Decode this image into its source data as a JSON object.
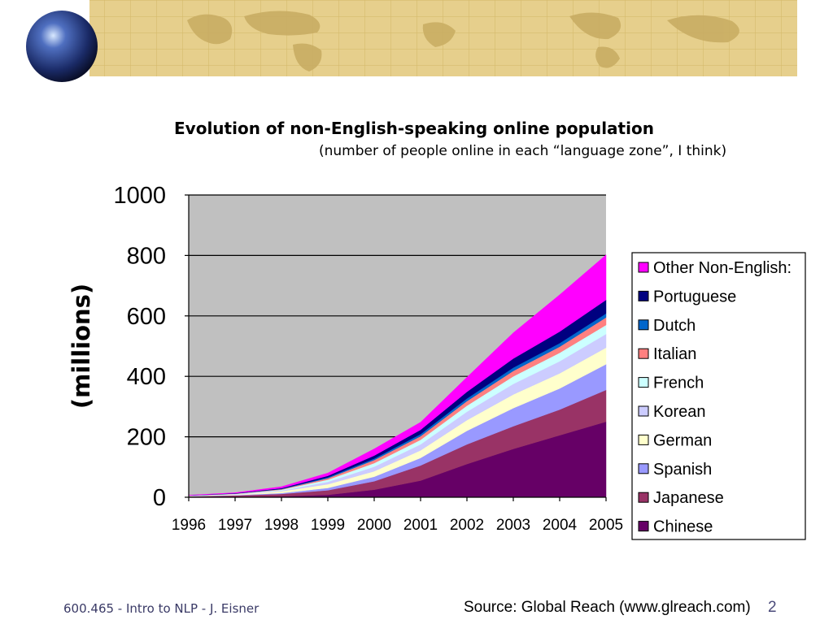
{
  "slide": {
    "footer_left": "600.465 - Intro to NLP - J. Eisner",
    "source": "Source: Global Reach (www.glreach.com)",
    "page_number": "2"
  },
  "colors": {
    "banner_bg": "#e6cf8c",
    "banner_grid": "#d3b766",
    "plot_bg": "#c0c0c0"
  },
  "chart_data": {
    "type": "area",
    "stacked": true,
    "title": "Evolution of non-English-speaking online population",
    "subtitle": "(number of people online in each “language zone”, I think)",
    "ylabel": "(millions)",
    "xlabel": "",
    "ylim": [
      0,
      1000
    ],
    "yticks": [
      0,
      200,
      400,
      600,
      800,
      1000
    ],
    "categories": [
      "1996",
      "1997",
      "1998",
      "1999",
      "2000",
      "2001",
      "2002",
      "2003",
      "2004",
      "2005"
    ],
    "grid": "horizontal",
    "legend_position": "right",
    "series": [
      {
        "name": "Chinese",
        "color": "#660066",
        "values": [
          1,
          2,
          3,
          8,
          25,
          55,
          110,
          160,
          205,
          250
        ]
      },
      {
        "name": "Japanese",
        "color": "#993366",
        "values": [
          2,
          4,
          8,
          15,
          28,
          50,
          65,
          75,
          85,
          105
        ]
      },
      {
        "name": "Spanish",
        "color": "#9999ff",
        "values": [
          0.5,
          1,
          3,
          8,
          15,
          25,
          45,
          60,
          70,
          85
        ]
      },
      {
        "name": "German",
        "color": "#ffffcc",
        "values": [
          1,
          2,
          6,
          12,
          18,
          25,
          35,
          45,
          50,
          55
        ]
      },
      {
        "name": "Korean",
        "color": "#ccccff",
        "values": [
          0.3,
          1,
          2,
          8,
          15,
          20,
          28,
          35,
          40,
          45
        ]
      },
      {
        "name": "French",
        "color": "#ccffff",
        "values": [
          0.5,
          1,
          3,
          7,
          12,
          15,
          20,
          25,
          28,
          30
        ]
      },
      {
        "name": "Italian",
        "color": "#ff8080",
        "values": [
          0.3,
          1,
          2,
          5,
          10,
          12,
          15,
          18,
          20,
          25
        ]
      },
      {
        "name": "Dutch",
        "color": "#0066cc",
        "values": [
          0.3,
          0.5,
          1,
          3,
          5,
          7,
          9,
          11,
          12,
          13
        ]
      },
      {
        "name": "Portuguese",
        "color": "#000080",
        "values": [
          0.3,
          1,
          2,
          5,
          10,
          14,
          22,
          30,
          38,
          45
        ]
      },
      {
        "name": "Other Non-English:",
        "color": "#ff00ff",
        "values": [
          0.5,
          1.5,
          5,
          9,
          22,
          25,
          48,
          85,
          122,
          149
        ]
      }
    ],
    "legend_order": [
      "Other Non-English:",
      "Portuguese",
      "Dutch",
      "Italian",
      "French",
      "Korean",
      "German",
      "Spanish",
      "Japanese",
      "Chinese"
    ]
  }
}
